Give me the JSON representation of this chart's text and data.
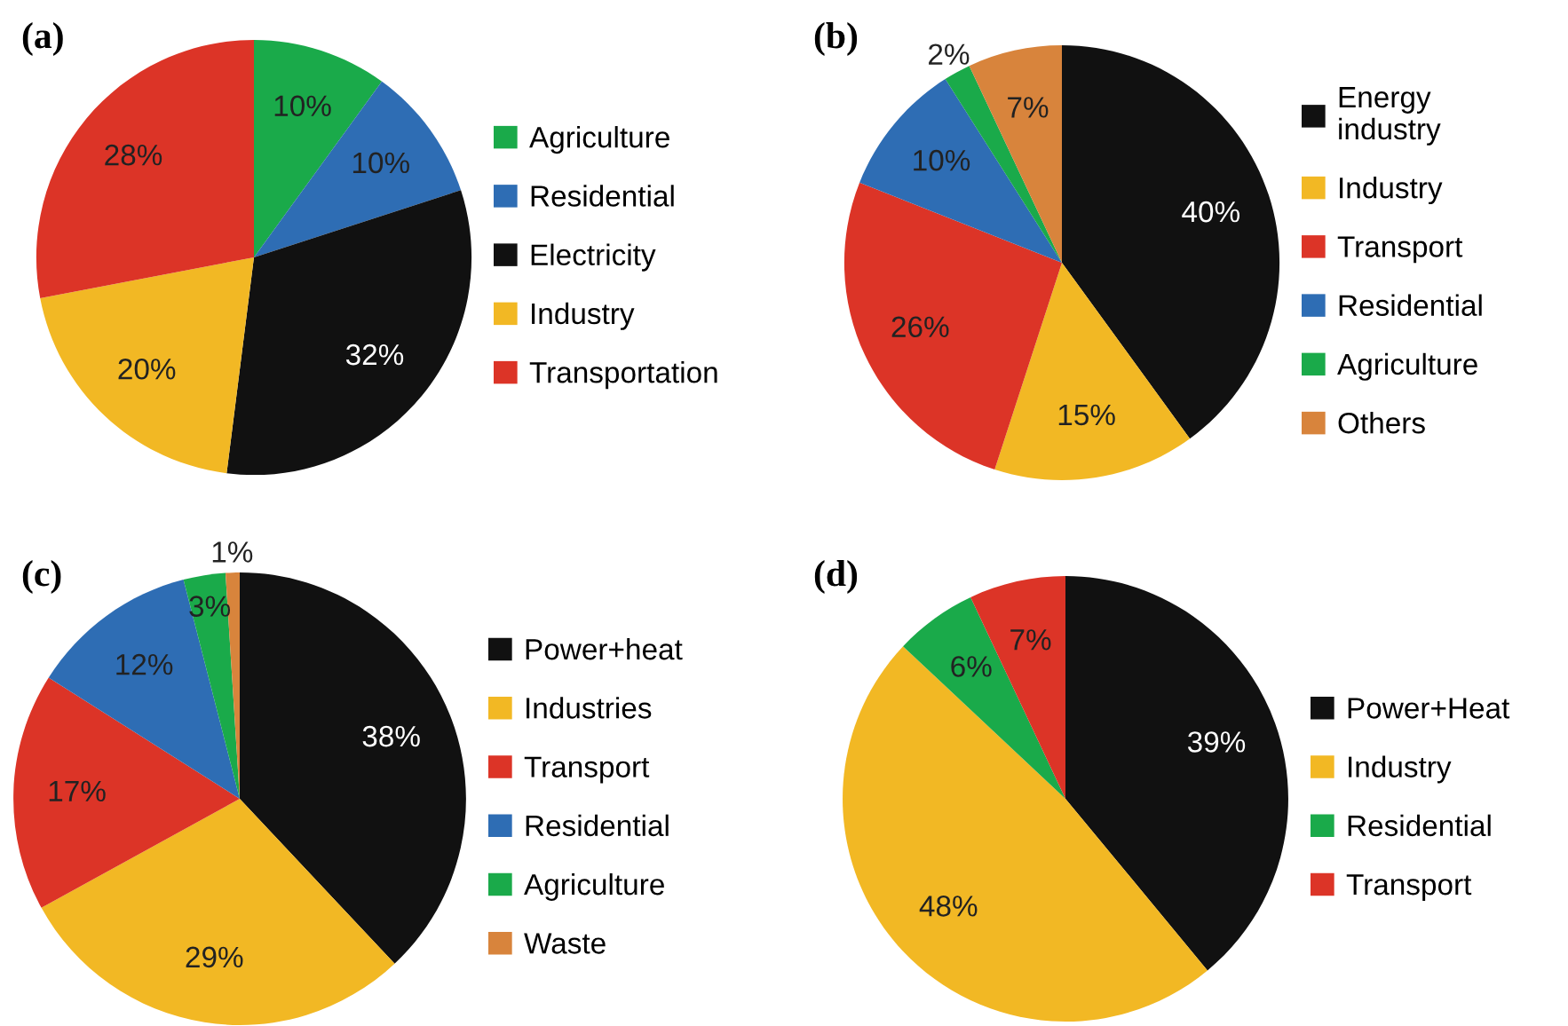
{
  "chart_data": [
    {
      "type": "pie",
      "title": "(a)",
      "categories": [
        "Agriculture",
        "Residential",
        "Electricity",
        "Industry",
        "Transportation"
      ],
      "values": [
        10,
        10,
        32,
        20,
        28
      ],
      "colors": [
        "#1aaa4a",
        "#2e6db4",
        "#111111",
        "#f2b824",
        "#dc3427"
      ],
      "value_labels": [
        "10%",
        "10%",
        "32%",
        "20%",
        "28%"
      ],
      "legend": "right"
    },
    {
      "type": "pie",
      "title": "(b)",
      "categories": [
        "Energy\nindustry",
        "Industry",
        "Transport",
        "Residential",
        "Agriculture",
        "Others"
      ],
      "values": [
        40,
        15,
        26,
        10,
        2,
        7
      ],
      "colors": [
        "#111111",
        "#f2b824",
        "#dc3427",
        "#2e6db4",
        "#1aaa4a",
        "#d8843c"
      ],
      "value_labels": [
        "40%",
        "15%",
        "26%",
        "10%",
        "2%",
        "7%"
      ],
      "legend": "right"
    },
    {
      "type": "pie",
      "title": "(c)",
      "categories": [
        "Power+heat",
        "Industries",
        "Transport",
        "Residential",
        "Agriculture",
        "Waste"
      ],
      "values": [
        38,
        29,
        17,
        12,
        3,
        1
      ],
      "colors": [
        "#111111",
        "#f2b824",
        "#dc3427",
        "#2e6db4",
        "#1aaa4a",
        "#d8843c"
      ],
      "value_labels": [
        "38%",
        "29%",
        "17%",
        "12%",
        "3%",
        "1%"
      ],
      "legend": "right"
    },
    {
      "type": "pie",
      "title": "(d)",
      "categories": [
        "Power+Heat",
        "Industry",
        "Residential",
        "Transport"
      ],
      "values": [
        39,
        48,
        6,
        7
      ],
      "colors": [
        "#111111",
        "#f2b824",
        "#1aaa4a",
        "#dc3427"
      ],
      "value_labels": [
        "39%",
        "48%",
        "6%",
        "7%"
      ],
      "legend": "right"
    }
  ]
}
